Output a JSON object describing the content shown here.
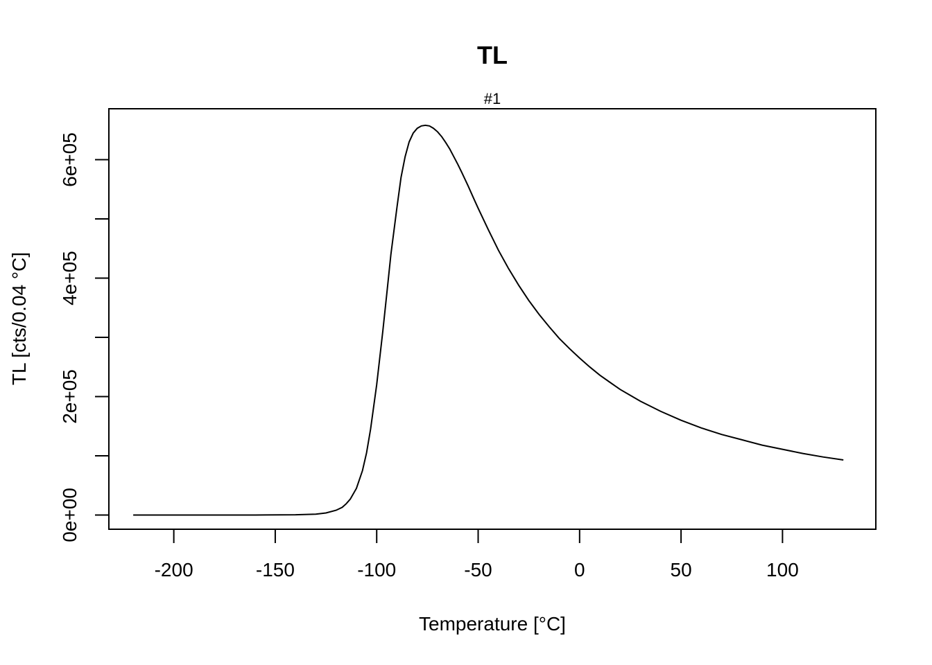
{
  "chart_data": {
    "type": "line",
    "title": "TL",
    "subtitle": "#1",
    "xlabel": "Temperature [°C]",
    "ylabel": "TL [cts/0.04 °C]",
    "xlim": [
      -232,
      146
    ],
    "ylim": [
      -24000,
      686000
    ],
    "xticks": [
      -200,
      -150,
      -100,
      -50,
      0,
      50,
      100
    ],
    "xtick_labels": [
      "-200",
      "-150",
      "-100",
      "-50",
      "0",
      "50",
      "100"
    ],
    "yticks": [
      0,
      100000,
      200000,
      300000,
      400000,
      500000,
      600000
    ],
    "ytick_labels": [
      "0e+00",
      "",
      "2e+05",
      "",
      "4e+05",
      "",
      "6e+05"
    ],
    "grid": false,
    "legend": "none",
    "line_color": "#000000",
    "series": [
      {
        "x": [
          -220,
          -200,
          -180,
          -160,
          -140,
          -130,
          -125,
          -120,
          -117,
          -115,
          -113,
          -110,
          -107,
          -105,
          -103,
          -100,
          -97,
          -95,
          -93,
          -90,
          -88,
          -86,
          -84,
          -82,
          -80,
          -78,
          -76,
          -74,
          -72,
          -70,
          -68,
          -66,
          -64,
          -62,
          -60,
          -58,
          -55,
          -52,
          -50,
          -45,
          -40,
          -35,
          -30,
          -25,
          -20,
          -15,
          -10,
          -5,
          0,
          5,
          10,
          15,
          20,
          25,
          30,
          40,
          50,
          60,
          70,
          80,
          90,
          100,
          110,
          120,
          130
        ],
        "y": [
          0,
          0,
          0,
          0,
          500,
          1500,
          3500,
          8000,
          13000,
          19000,
          27000,
          45000,
          75000,
          105000,
          145000,
          220000,
          310000,
          375000,
          440000,
          520000,
          570000,
          605000,
          630000,
          645000,
          653000,
          657000,
          658000,
          657000,
          653000,
          647000,
          639000,
          629000,
          618000,
          605000,
          592000,
          578000,
          556000,
          533000,
          518000,
          482000,
          447000,
          416000,
          388000,
          362000,
          339000,
          318000,
          298000,
          281000,
          265000,
          250000,
          236000,
          224000,
          212000,
          202000,
          192000,
          175000,
          160000,
          147000,
          136000,
          127000,
          118000,
          111000,
          104000,
          98000,
          93000
        ]
      }
    ]
  }
}
